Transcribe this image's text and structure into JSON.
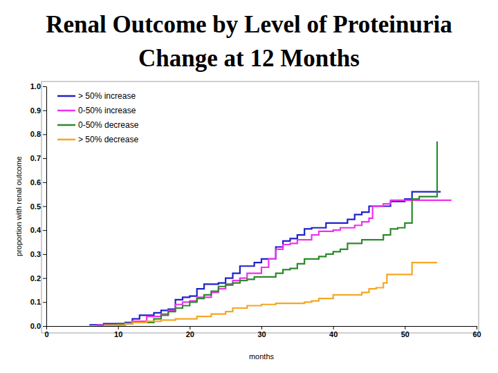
{
  "chart_data": {
    "type": "line",
    "title": "Renal Outcome by Level of Proteinuria Change at 12 Months",
    "x_label": "months",
    "y_label": "proportion with renal outcome",
    "xlim": [
      0,
      60
    ],
    "xticks": [
      0,
      10,
      20,
      30,
      40,
      50,
      60
    ],
    "ylim": [
      0,
      1
    ],
    "yticks": [
      {
        "value": 0,
        "label": "0.0"
      },
      0.1,
      0.2,
      0.3,
      0.4,
      0.5,
      0.6,
      0.7,
      0.8,
      0.9,
      {
        "value": 1,
        "label": "1.0"
      }
    ],
    "grid": false,
    "legend": "upper left",
    "line_style": "step",
    "series": [
      {
        "name": "> 50% increase",
        "color": "#2020c8",
        "x": [
          6,
          8,
          11,
          12,
          13,
          15,
          16,
          17,
          18,
          19,
          20,
          21,
          22,
          24,
          25,
          26,
          27,
          29,
          30,
          32,
          33,
          34,
          35,
          36,
          37,
          39,
          42,
          43,
          44,
          45,
          48,
          50,
          51,
          55
        ],
        "values": [
          0.005,
          0.01,
          0.015,
          0.03,
          0.045,
          0.055,
          0.065,
          0.07,
          0.11,
          0.12,
          0.125,
          0.155,
          0.175,
          0.18,
          0.2,
          0.22,
          0.25,
          0.265,
          0.28,
          0.33,
          0.355,
          0.365,
          0.38,
          0.405,
          0.41,
          0.43,
          0.445,
          0.465,
          0.475,
          0.5,
          0.52,
          0.53,
          0.56,
          0.56
        ]
      },
      {
        "name": "0-50% increase",
        "color": "#f030f0",
        "x": [
          7,
          10,
          12,
          14,
          16,
          17,
          18,
          19,
          20,
          21,
          23,
          24,
          25,
          26,
          27,
          28,
          30,
          31,
          32,
          33,
          34,
          35,
          37,
          38,
          40,
          41,
          43,
          44,
          45,
          45.5,
          47,
          48,
          56.5
        ],
        "values": [
          0.003,
          0.01,
          0.02,
          0.04,
          0.05,
          0.065,
          0.09,
          0.1,
          0.105,
          0.12,
          0.14,
          0.155,
          0.17,
          0.19,
          0.2,
          0.22,
          0.245,
          0.28,
          0.32,
          0.34,
          0.345,
          0.36,
          0.38,
          0.395,
          0.4,
          0.41,
          0.42,
          0.435,
          0.45,
          0.5,
          0.51,
          0.525,
          0.525
        ]
      },
      {
        "name": "0-50% decrease",
        "color": "#2a8a2a",
        "x": [
          8,
          10,
          12,
          15,
          16,
          17,
          18,
          19,
          20,
          21,
          22,
          23,
          24,
          25,
          26,
          27,
          28,
          29,
          32,
          33,
          34,
          35,
          36,
          38,
          39,
          40,
          41,
          42,
          44,
          47,
          48,
          49,
          50,
          51,
          52,
          54.5,
          54.5
        ],
        "values": [
          0.003,
          0.01,
          0.015,
          0.03,
          0.045,
          0.06,
          0.075,
          0.085,
          0.1,
          0.115,
          0.13,
          0.145,
          0.165,
          0.175,
          0.18,
          0.19,
          0.195,
          0.205,
          0.22,
          0.235,
          0.24,
          0.26,
          0.28,
          0.29,
          0.3,
          0.31,
          0.32,
          0.345,
          0.36,
          0.38,
          0.405,
          0.41,
          0.43,
          0.53,
          0.54,
          0.54,
          0.77
        ]
      },
      {
        "name": "> 50% decrease",
        "color": "#f5a623",
        "x": [
          8,
          11,
          12,
          14,
          16,
          18,
          21,
          23,
          25,
          26,
          28,
          30,
          32,
          36,
          37,
          38,
          40,
          44,
          45,
          46,
          47,
          47.5,
          50.5,
          51,
          54.5
        ],
        "values": [
          0.003,
          0.01,
          0.015,
          0.02,
          0.025,
          0.03,
          0.04,
          0.05,
          0.06,
          0.075,
          0.085,
          0.09,
          0.095,
          0.1,
          0.105,
          0.115,
          0.13,
          0.14,
          0.155,
          0.16,
          0.18,
          0.215,
          0.215,
          0.265,
          0.265
        ]
      }
    ]
  }
}
